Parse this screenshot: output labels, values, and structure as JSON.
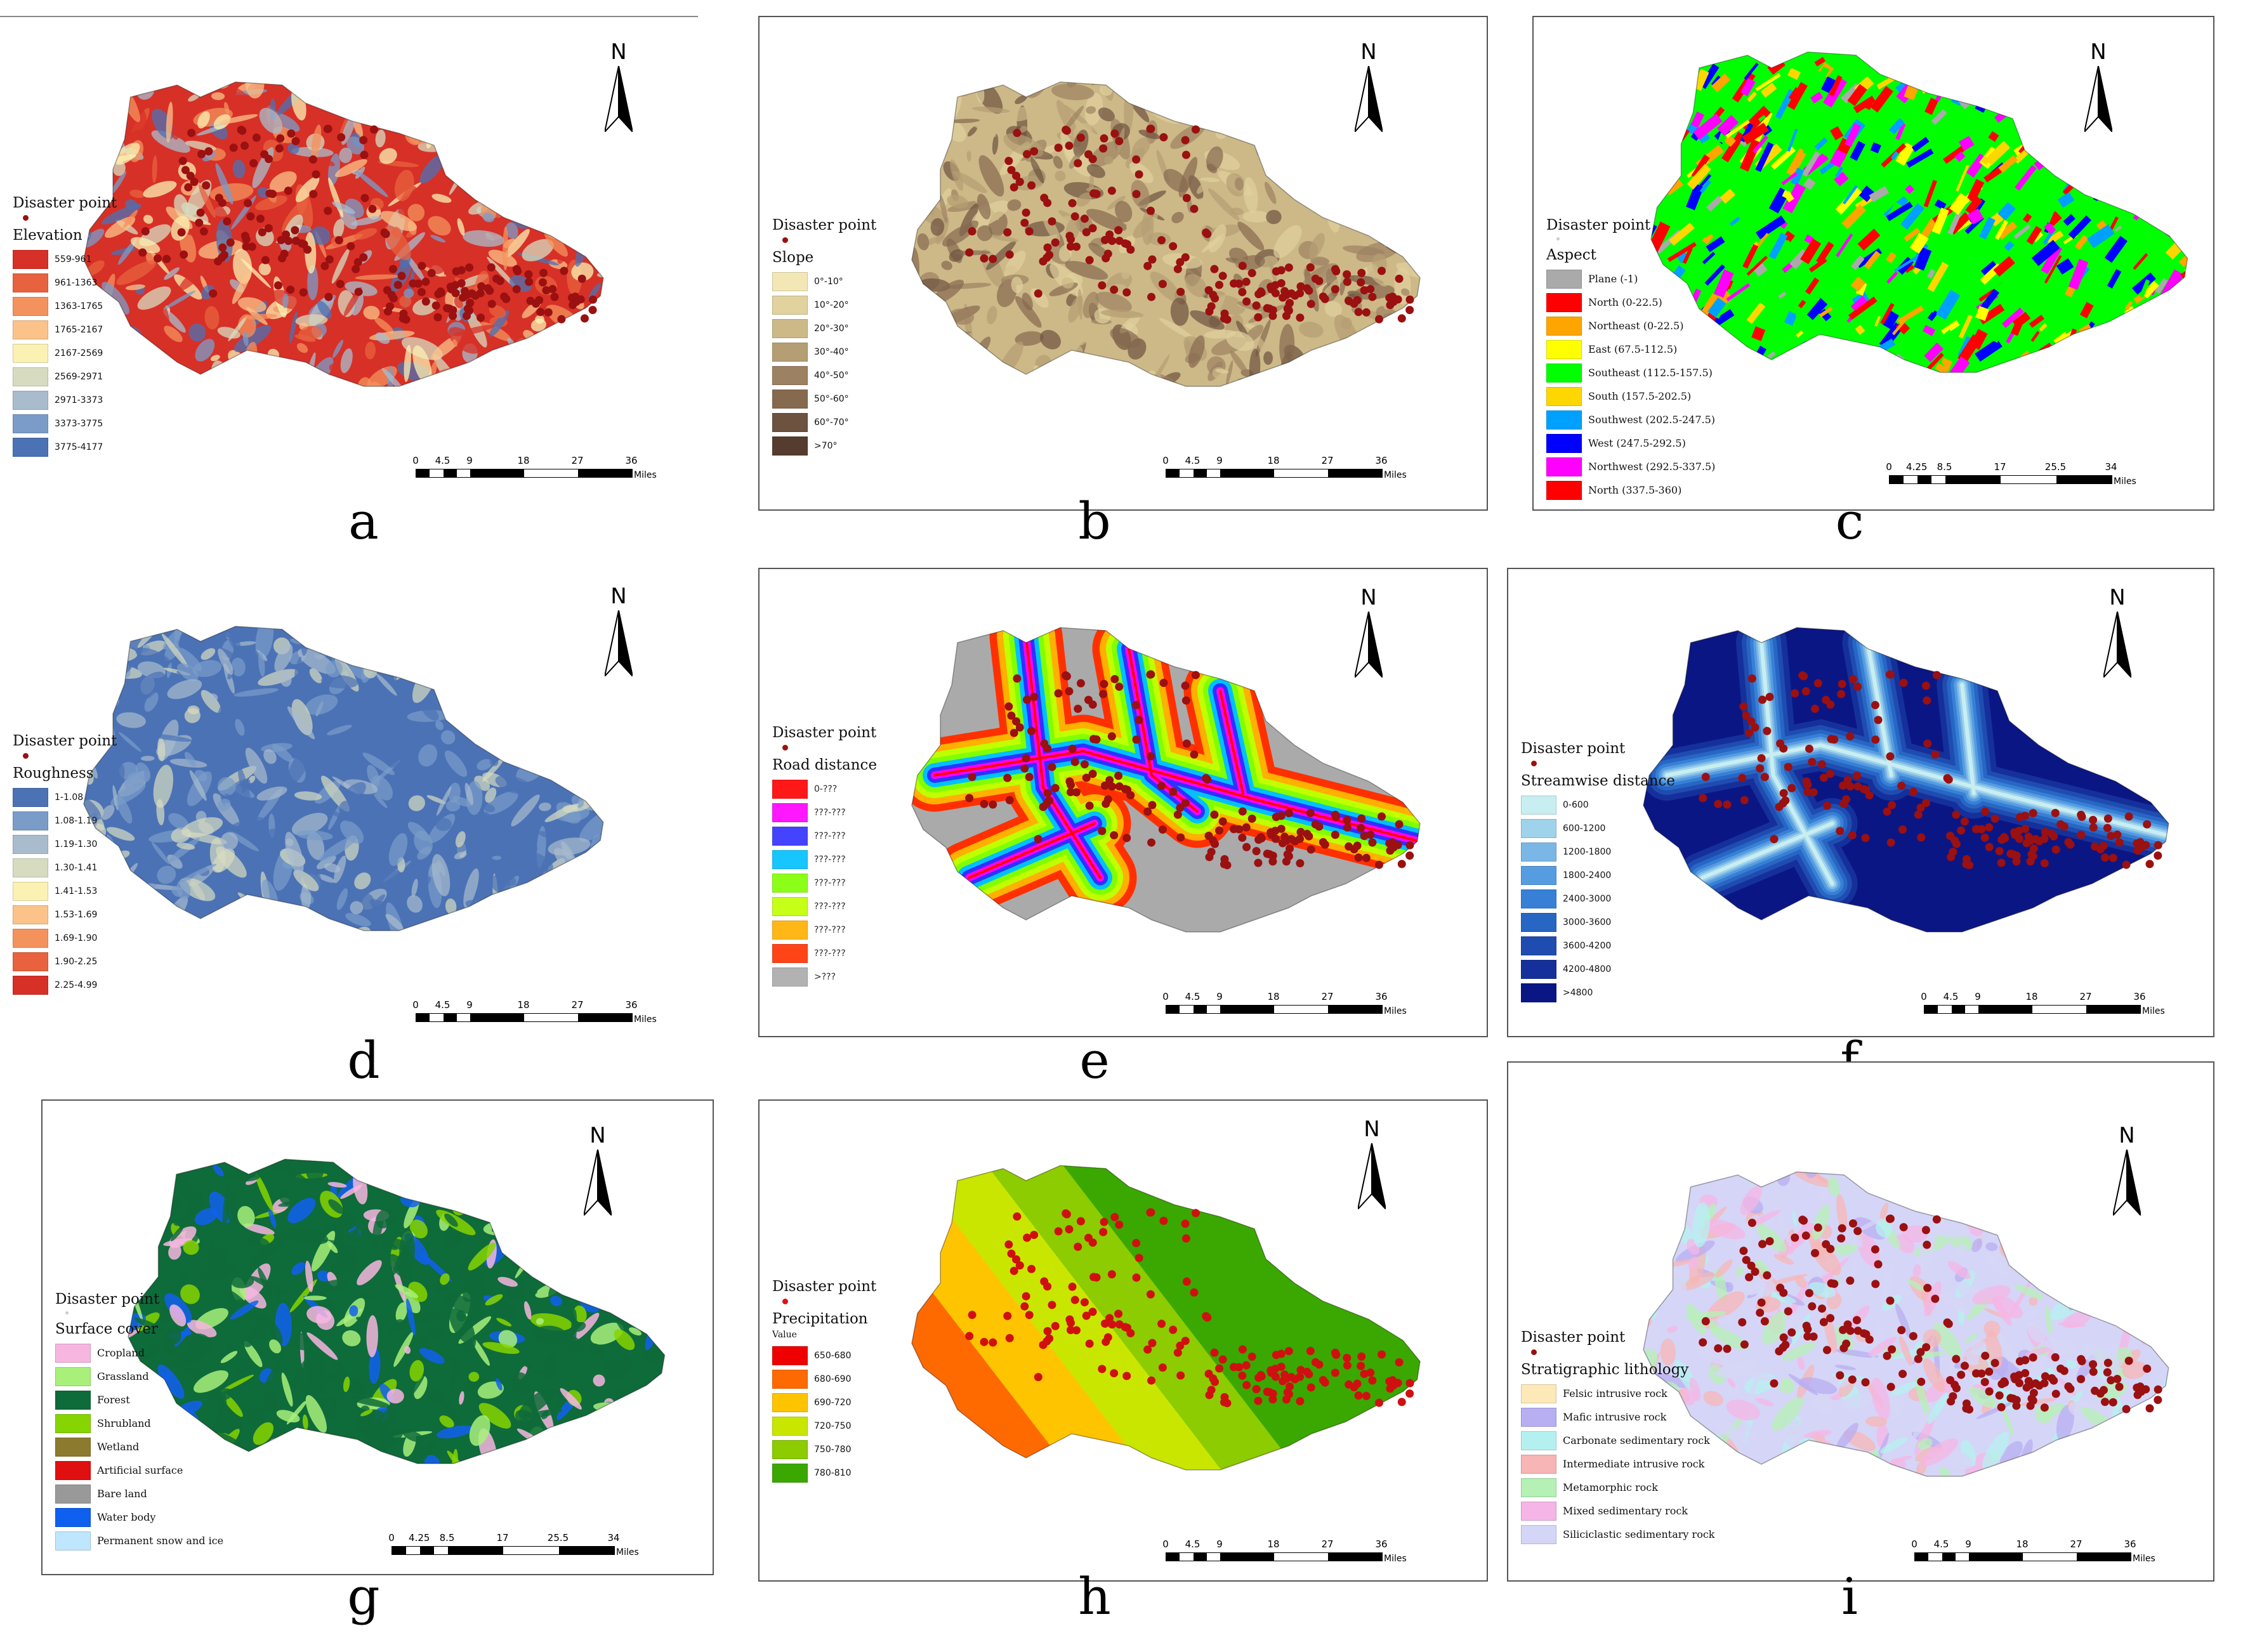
{
  "common": {
    "disaster_point_label": "Disaster point",
    "north_label": "N",
    "miles_label": "Miles",
    "scale_a": [
      "0",
      "4.5",
      "9",
      "18",
      "27",
      "36"
    ],
    "scale_b": [
      "0",
      "4.25",
      "8.5",
      "17",
      "25.5",
      "34"
    ]
  },
  "panels": [
    {
      "id": "a",
      "caption": "a",
      "legend_title": "Elevation",
      "items": [
        {
          "label": "559-961",
          "color": "#d73027"
        },
        {
          "label": "961-1363",
          "color": "#e8623f"
        },
        {
          "label": "1363-1765",
          "color": "#f4925e"
        },
        {
          "label": "1765-2167",
          "color": "#fbc38a"
        },
        {
          "label": "2167-2569",
          "color": "#fbf1b3"
        },
        {
          "label": "2569-2971",
          "color": "#d7dcc0"
        },
        {
          "label": "2971-3373",
          "color": "#a9bccd"
        },
        {
          "label": "3373-3775",
          "color": "#7b9cc9"
        },
        {
          "label": "3775-4177",
          "color": "#4b72b5"
        }
      ]
    },
    {
      "id": "b",
      "caption": "b",
      "legend_title": "Slope",
      "items": [
        {
          "label": "0°-10°",
          "color": "#f3e8b5"
        },
        {
          "label": "10°-20°",
          "color": "#e1d29e"
        },
        {
          "label": "20°-30°",
          "color": "#cdb988"
        },
        {
          "label": "30°-40°",
          "color": "#b59e74"
        },
        {
          "label": "40°-50°",
          "color": "#9c8162"
        },
        {
          "label": "50°-60°",
          "color": "#866a50"
        },
        {
          "label": "60°-70°",
          "color": "#6d5240"
        },
        {
          "label": ">70°",
          "color": "#553c2e"
        }
      ]
    },
    {
      "id": "c",
      "caption": "c",
      "legend_title": "Aspect",
      "items": [
        {
          "label": "Plane (-1)",
          "color": "#aaaaaa"
        },
        {
          "label": "North (0-22.5)",
          "color": "#ff0000"
        },
        {
          "label": "Northeast (0-22.5)",
          "color": "#ffa500"
        },
        {
          "label": "East (67.5-112.5)",
          "color": "#ffff00"
        },
        {
          "label": "Southeast (112.5-157.5)",
          "color": "#00ff00"
        },
        {
          "label": "South (157.5-202.5)",
          "color": "#ffd700"
        },
        {
          "label": "Southwest (202.5-247.5)",
          "color": "#00a0ff"
        },
        {
          "label": "West (247.5-292.5)",
          "color": "#0000ff"
        },
        {
          "label": "Northwest (292.5-337.5)",
          "color": "#ff00ff"
        },
        {
          "label": "North (337.5-360)",
          "color": "#ff0000"
        }
      ]
    },
    {
      "id": "d",
      "caption": "d",
      "legend_title": "Roughness",
      "items": [
        {
          "label": "1-1.08",
          "color": "#4b72b5"
        },
        {
          "label": "1.08-1.19",
          "color": "#7b9cc9"
        },
        {
          "label": "1.19-1.30",
          "color": "#a9bccd"
        },
        {
          "label": "1.30-1.41",
          "color": "#d7dcc0"
        },
        {
          "label": "1.41-1.53",
          "color": "#fbf1b3"
        },
        {
          "label": "1.53-1.69",
          "color": "#fbc38a"
        },
        {
          "label": "1.69-1.90",
          "color": "#f4925e"
        },
        {
          "label": "1.90-2.25",
          "color": "#e8623f"
        },
        {
          "label": "2.25-4.99",
          "color": "#d73027"
        }
      ]
    },
    {
      "id": "e",
      "caption": "e",
      "legend_title": "Road distance",
      "items": [
        {
          "label": "0-???",
          "color": "#ff0000"
        },
        {
          "label": "???-???",
          "color": "#ff00ff"
        },
        {
          "label": "???-???",
          "color": "#3030ff"
        },
        {
          "label": "???-???",
          "color": "#00c0ff"
        },
        {
          "label": "???-???",
          "color": "#80ff00"
        },
        {
          "label": "???-???",
          "color": "#c0ff00"
        },
        {
          "label": "???-???",
          "color": "#ffb000"
        },
        {
          "label": "???-???",
          "color": "#ff3000"
        },
        {
          "label": ">???",
          "color": "#aaaaaa"
        }
      ]
    },
    {
      "id": "f",
      "caption": "f",
      "legend_title": "Streamwise distance",
      "items": [
        {
          "label": "0-600",
          "color": "#c8eef2"
        },
        {
          "label": "600-1200",
          "color": "#9fd3ec"
        },
        {
          "label": "1200-1800",
          "color": "#7bb7e6"
        },
        {
          "label": "1800-2400",
          "color": "#569ce0"
        },
        {
          "label": "2400-3000",
          "color": "#3780d6"
        },
        {
          "label": "3000-3600",
          "color": "#2866c4"
        },
        {
          "label": "3600-4200",
          "color": "#1f4cb0"
        },
        {
          "label": "4200-4800",
          "color": "#15309a"
        },
        {
          "label": ">4800",
          "color": "#0b1685"
        }
      ]
    },
    {
      "id": "g",
      "caption": "g",
      "legend_title": "Surface cover",
      "items": [
        {
          "label": "Cropland",
          "color": "#f7b6e0"
        },
        {
          "label": "Grassland",
          "color": "#a8f07a"
        },
        {
          "label": "Forest",
          "color": "#0e6b3a"
        },
        {
          "label": "Shrubland",
          "color": "#86d400"
        },
        {
          "label": "Wetland",
          "color": "#8c7a2e"
        },
        {
          "label": "Artificial surface",
          "color": "#e01010"
        },
        {
          "label": "Bare land",
          "color": "#999999"
        },
        {
          "label": "Water body",
          "color": "#1060f0"
        },
        {
          "label": "Permanent snow and ice",
          "color": "#bfe6ff"
        }
      ]
    },
    {
      "id": "h",
      "caption": "h",
      "legend_title": "Precipitation",
      "legend_subtitle": "Value",
      "items": [
        {
          "label": "650-680",
          "color": "#ee0000"
        },
        {
          "label": "680-690",
          "color": "#ff6a00"
        },
        {
          "label": "690-720",
          "color": "#ffc400"
        },
        {
          "label": "720-750",
          "color": "#c9e600"
        },
        {
          "label": "750-780",
          "color": "#8ccc00"
        },
        {
          "label": "780-810",
          "color": "#3aa800"
        }
      ]
    },
    {
      "id": "i",
      "caption": "i",
      "legend_title": "Stratigraphic lithology",
      "items": [
        {
          "label": "Felsic intrusive rock",
          "color": "#fde9b8"
        },
        {
          "label": "Mafic intrusive rock",
          "color": "#b8aef2"
        },
        {
          "label": "Carbonate sedimentary rock",
          "color": "#b5f0f0"
        },
        {
          "label": "Intermediate intrusive rock",
          "color": "#f7b5b5"
        },
        {
          "label": "Metamorphic rock",
          "color": "#b5f0b5"
        },
        {
          "label": "Mixed sedimentary rock",
          "color": "#f5b5e6"
        },
        {
          "label": "Siliciclastic sedimentary rock",
          "color": "#d5d5f7"
        }
      ]
    }
  ]
}
